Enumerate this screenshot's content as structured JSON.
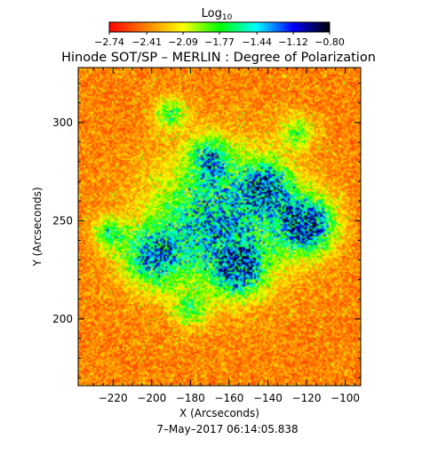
{
  "chart_data": {
    "type": "heatmap",
    "title": "Hinode SOT/SP – MERLIN : Degree of Polarization",
    "xlabel": "X (Arcseconds)",
    "ylabel": "Y (Arcseconds)",
    "footer": "7–May–2017 06:14:05.838",
    "xlim": [
      -238,
      -92
    ],
    "ylim": [
      166,
      328
    ],
    "x_ticks": [
      -220,
      -200,
      -180,
      -160,
      -140,
      -120,
      -100
    ],
    "x_tick_labels": [
      "−220",
      "−200",
      "−180",
      "−160",
      "−140",
      "−120",
      "−100"
    ],
    "y_ticks": [
      200,
      250,
      300
    ],
    "y_tick_labels": [
      "200",
      "250",
      "300"
    ],
    "colorbar": {
      "label_base": "Log",
      "label_sub": "10",
      "min": -2.74,
      "max": -0.8,
      "ticks": [
        -2.74,
        -2.41,
        -2.09,
        -1.77,
        -1.44,
        -1.12,
        -0.8
      ],
      "tick_labels": [
        "−2.74",
        "−2.41",
        "−2.09",
        "−1.77",
        "−1.44",
        "−1.12",
        "−0.80"
      ],
      "colors": [
        "#ff0000",
        "#ff8000",
        "#ffff00",
        "#00ff00",
        "#00ffff",
        "#0000ff",
        "#000000"
      ]
    },
    "features": [
      {
        "x": -165,
        "y": 250,
        "r": 32,
        "amp": 1.0
      },
      {
        "x": -120,
        "y": 248,
        "r": 14,
        "amp": 1.3
      },
      {
        "x": -155,
        "y": 225,
        "r": 12,
        "amp": 1.0
      },
      {
        "x": -200,
        "y": 232,
        "r": 15,
        "amp": 0.9
      },
      {
        "x": -170,
        "y": 282,
        "r": 10,
        "amp": 0.7
      },
      {
        "x": -140,
        "y": 268,
        "r": 12,
        "amp": 0.9
      },
      {
        "x": -190,
        "y": 305,
        "r": 8,
        "amp": 0.6
      },
      {
        "x": -125,
        "y": 295,
        "r": 9,
        "amp": 0.5
      },
      {
        "x": -222,
        "y": 244,
        "r": 8,
        "amp": 0.6
      },
      {
        "x": -180,
        "y": 205,
        "r": 9,
        "amp": 0.5
      }
    ]
  }
}
